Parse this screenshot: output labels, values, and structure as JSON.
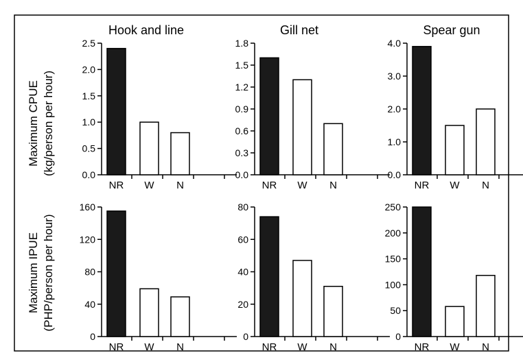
{
  "figure": {
    "row_labels": [
      {
        "line1": "Maximum CPUE",
        "line2": "(kg/person per hour)"
      },
      {
        "line1": "Maximum IPUE",
        "line2": "(PHP/person per hour)"
      }
    ],
    "colors": {
      "NR": "#1a1a1a",
      "W": "#ffffff",
      "N": "#ffffff",
      "stroke": "#000000"
    }
  },
  "chart_data": [
    {
      "type": "bar",
      "title": "Hook and line",
      "ylabel": "Maximum CPUE (kg/person per hour)",
      "categories": [
        "NR",
        "W",
        "N"
      ],
      "values": [
        2.4,
        1.0,
        0.8
      ],
      "ylim": [
        0,
        2.5
      ],
      "yticks": [
        "0.0",
        "0.5",
        "1.0",
        "1.5",
        "2.0",
        "2.5"
      ]
    },
    {
      "type": "bar",
      "title": "Gill net",
      "ylabel": "",
      "categories": [
        "NR",
        "W",
        "N"
      ],
      "values": [
        1.6,
        1.3,
        0.7
      ],
      "ylim": [
        0,
        1.8
      ],
      "yticks": [
        "0.0",
        "0.3",
        "0.6",
        "0.9",
        "1.2",
        "1.5",
        "1.8"
      ]
    },
    {
      "type": "bar",
      "title": "Spear gun",
      "ylabel": "",
      "categories": [
        "NR",
        "W",
        "N"
      ],
      "values": [
        3.9,
        1.5,
        2.0
      ],
      "ylim": [
        0,
        4.0
      ],
      "yticks": [
        "0.0",
        "1.0",
        "2.0",
        "3.0",
        "4.0"
      ]
    },
    {
      "type": "bar",
      "title": "",
      "ylabel": "Maximum IPUE (PHP/person per hour)",
      "categories": [
        "NR",
        "W",
        "N"
      ],
      "values": [
        155,
        59,
        49
      ],
      "ylim": [
        0,
        160
      ],
      "yticks": [
        "0",
        "40",
        "80",
        "120",
        "160"
      ]
    },
    {
      "type": "bar",
      "title": "",
      "ylabel": "",
      "categories": [
        "NR",
        "W",
        "N"
      ],
      "values": [
        74,
        47,
        31
      ],
      "ylim": [
        0,
        80
      ],
      "yticks": [
        "0",
        "20",
        "40",
        "60",
        "80"
      ]
    },
    {
      "type": "bar",
      "title": "",
      "ylabel": "",
      "categories": [
        "NR",
        "W",
        "N"
      ],
      "values": [
        250,
        58,
        118
      ],
      "ylim": [
        0,
        250
      ],
      "yticks": [
        "0",
        "50",
        "100",
        "150",
        "200",
        "250"
      ]
    }
  ]
}
